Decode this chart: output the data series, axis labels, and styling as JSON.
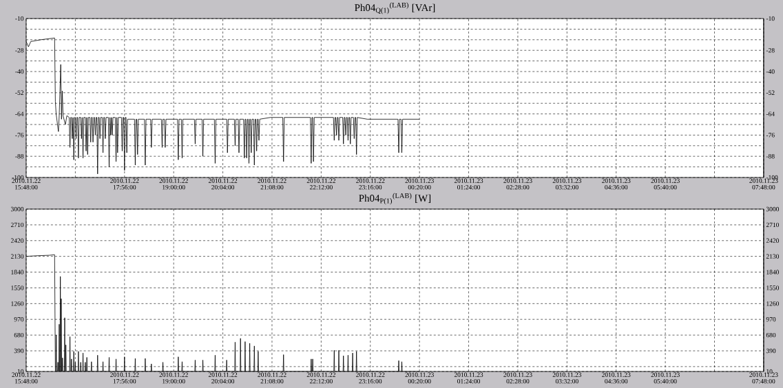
{
  "chart_data": [
    {
      "type": "line",
      "title": "Ph04$_{Q(1)}$$^{(LAB)}$ [VAr]",
      "grid": true,
      "xlim": [
        "2010-11-22T15:48",
        "2010-11-23T07:48"
      ],
      "ylim": [
        -100,
        -10
      ],
      "y2lim": [
        -100,
        -10
      ],
      "xticks": [
        {
          "value": "2010-11-22T15:48",
          "label": "2010.11.22 15:48:00"
        },
        {
          "value": "2010-11-22T16:52",
          "label": null
        },
        {
          "value": "2010-11-22T17:56",
          "label": "2010.11.22 17:56:00"
        },
        {
          "value": "2010-11-22T19:00",
          "label": "2010.11.22 19:00:00"
        },
        {
          "value": "2010-11-22T20:04",
          "label": "2010.11.22 20:04:00"
        },
        {
          "value": "2010-11-22T21:08",
          "label": "2010.11.22 21:08:00"
        },
        {
          "value": "2010-11-22T22:12",
          "label": "2010.11.22 22:12:00"
        },
        {
          "value": "2010-11-22T23:16",
          "label": "2010.11.22 23:16:00"
        },
        {
          "value": "2010-11-23T00:20",
          "label": "2010.11.23 00:20:00"
        },
        {
          "value": "2010-11-23T01:24",
          "label": "2010.11.23 01:24:00"
        },
        {
          "value": "2010-11-23T02:28",
          "label": "2010.11.23 02:28:00"
        },
        {
          "value": "2010-11-23T03:32",
          "label": "2010.11.23 03:32:00"
        },
        {
          "value": "2010-11-23T04:36",
          "label": "2010.11.23 04:36:00"
        },
        {
          "value": "2010-11-23T05:40",
          "label": "2010.11.23 05:40:00"
        },
        {
          "value": "2010-11-23T06:44",
          "label": null
        },
        {
          "value": "2010-11-23T07:48",
          "label": "2010.11.23 07:48:00"
        }
      ],
      "yticks": [
        -100,
        {
          "value": -94,
          "label": null
        },
        -88,
        {
          "value": -82,
          "label": null
        },
        -76,
        {
          "value": -70,
          "label": null
        },
        -64,
        {
          "value": -58,
          "label": null
        },
        -52,
        {
          "value": -46,
          "label": null
        },
        -40,
        {
          "value": -34,
          "label": null
        },
        -28,
        {
          "value": -22,
          "label": null
        },
        {
          "value": -16,
          "label": null
        },
        -10
      ],
      "y2ticks": [
        -100,
        -88,
        -76,
        -64,
        -52,
        -40,
        -28,
        -10
      ],
      "series": [
        {
          "color": "#000000",
          "x": [
            "2010-11-22T15:48",
            "2010-11-22T15:51",
            "2010-11-22T15:54",
            "2010-11-22T16:07",
            "2010-11-22T16:25",
            "2010-11-22T16:26",
            "2010-11-22T16:27",
            "2010-11-22T16:30",
            "2010-11-22T16:31",
            "2010-11-22T16:33",
            "2010-11-22T16:34",
            "2010-11-22T16:35",
            "2010-11-22T16:36",
            "2010-11-22T16:39",
            "2010-11-22T16:41",
            "2010-11-22T16:44",
            "2010-11-22T16:45",
            "2010-11-22T16:46",
            "2010-11-22T16:47",
            "2010-11-22T16:48",
            "2010-11-22T16:49",
            "2010-11-22T16:49",
            "2010-11-22T16:50",
            "2010-11-22T16:51",
            "2010-11-22T16:52",
            "2010-11-22T16:53",
            "2010-11-22T16:54",
            "2010-11-22T16:55",
            "2010-11-22T16:56",
            "2010-11-22T16:57",
            "2010-11-22T16:59",
            "2010-11-22T17:00",
            "2010-11-22T17:01",
            "2010-11-22T17:01",
            "2010-11-22T17:02",
            "2010-11-22T17:03",
            "2010-11-22T17:05",
            "2010-11-22T17:06",
            "2010-11-22T17:07",
            "2010-11-22T17:07",
            "2010-11-22T17:08",
            "2010-11-22T17:09",
            "2010-11-22T17:11",
            "2010-11-22T17:12",
            "2010-11-22T17:13",
            "2010-11-22T17:14",
            "2010-11-22T17:15",
            "2010-11-22T17:16",
            "2010-11-22T17:17",
            "2010-11-22T17:18",
            "2010-11-22T17:19",
            "2010-11-22T17:20",
            "2010-11-22T17:21",
            "2010-11-22T17:22",
            "2010-11-22T17:23",
            "2010-11-22T17:24",
            "2010-11-22T17:25",
            "2010-11-22T17:27",
            "2010-11-22T17:28",
            "2010-11-22T17:29",
            "2010-11-22T17:30",
            "2010-11-22T17:31",
            "2010-11-22T17:32",
            "2010-11-22T17:35",
            "2010-11-22T17:36",
            "2010-11-22T17:37",
            "2010-11-22T17:37",
            "2010-11-22T17:38",
            "2010-11-22T17:39",
            "2010-11-22T17:39",
            "2010-11-22T17:40",
            "2010-11-22T17:41",
            "2010-11-22T17:44",
            "2010-11-22T17:45",
            "2010-11-22T17:46",
            "2010-11-22T17:46",
            "2010-11-22T17:47",
            "2010-11-22T17:48",
            "2010-11-22T17:52",
            "2010-11-22T17:53",
            "2010-11-22T17:54",
            "2010-11-22T17:55",
            "2010-11-22T17:56",
            "2010-11-22T17:57",
            "2010-11-22T17:58",
            "2010-11-22T17:59",
            "2010-11-22T18:00",
            "2010-11-22T18:09",
            "2010-11-22T18:10",
            "2010-11-22T18:11",
            "2010-11-22T18:12",
            "2010-11-22T18:13",
            "2010-11-22T18:14",
            "2010-11-22T18:22",
            "2010-11-22T18:23",
            "2010-11-22T18:24",
            "2010-11-22T18:30",
            "2010-11-22T18:31",
            "2010-11-22T18:32",
            "2010-11-22T18:44",
            "2010-11-22T18:45",
            "2010-11-22T18:46",
            "2010-11-22T18:48",
            "2010-11-22T18:49",
            "2010-11-22T18:50",
            "2010-11-22T19:05",
            "2010-11-22T19:06",
            "2010-11-22T19:07",
            "2010-11-22T19:10",
            "2010-11-22T19:11",
            "2010-11-22T19:12",
            "2010-11-22T19:27",
            "2010-11-22T19:28",
            "2010-11-22T19:29",
            "2010-11-22T19:37",
            "2010-11-22T19:38",
            "2010-11-22T19:39",
            "2010-11-22T19:53",
            "2010-11-22T19:54",
            "2010-11-22T19:55",
            "2010-11-22T20:09",
            "2010-11-22T20:10",
            "2010-11-22T20:11",
            "2010-11-22T20:19",
            "2010-11-22T20:20",
            "2010-11-22T20:21",
            "2010-11-22T20:24",
            "2010-11-22T20:25",
            "2010-11-22T20:26",
            "2010-11-22T20:31",
            "2010-11-22T20:32",
            "2010-11-22T20:33",
            "2010-11-22T20:34",
            "2010-11-22T20:35",
            "2010-11-22T20:36",
            "2010-11-22T20:37",
            "2010-11-22T20:38",
            "2010-11-22T20:39",
            "2010-11-22T20:40",
            "2010-11-22T20:41",
            "2010-11-22T20:42",
            "2010-11-22T20:44",
            "2010-11-22T20:45",
            "2010-11-22T20:46",
            "2010-11-22T20:47",
            "2010-11-22T20:48",
            "2010-11-22T20:49",
            "2010-11-22T20:50",
            "2010-11-22T20:51",
            "2010-11-22T20:52",
            "2010-11-22T21:06",
            "2010-11-22T21:22",
            "2010-11-22T21:23",
            "2010-11-22T21:24",
            "2010-11-22T21:58",
            "2010-11-22T21:59",
            "2010-11-22T22:00",
            "2010-11-22T22:01",
            "2010-11-22T22:02",
            "2010-11-22T22:03",
            "2010-11-22T22:28",
            "2010-11-22T22:29",
            "2010-11-22T22:30",
            "2010-11-22T22:31",
            "2010-11-22T22:32",
            "2010-11-22T22:33",
            "2010-11-22T22:34",
            "2010-11-22T22:35",
            "2010-11-22T22:36",
            "2010-11-22T22:40",
            "2010-11-22T22:41",
            "2010-11-22T22:42",
            "2010-11-22T22:43",
            "2010-11-22T22:44",
            "2010-11-22T22:45",
            "2010-11-22T22:46",
            "2010-11-22T22:47",
            "2010-11-22T22:48",
            "2010-11-22T22:49",
            "2010-11-22T22:50",
            "2010-11-22T22:51",
            "2010-11-22T22:54",
            "2010-11-22T22:55",
            "2010-11-22T22:56",
            "2010-11-22T22:57",
            "2010-11-22T22:58",
            "2010-11-22T22:59",
            "2010-11-22T23:12",
            "2010-11-22T23:52",
            "2010-11-22T23:53",
            "2010-11-22T23:54",
            "2010-11-22T23:56",
            "2010-11-22T23:57",
            "2010-11-22T23:58",
            "2010-11-23T00:20"
          ],
          "values": [
            -23,
            -26,
            -23,
            -22,
            -21,
            -57,
            -64,
            -74,
            -65,
            -36,
            -67,
            -51,
            -65,
            -70,
            -65,
            -66,
            -83,
            -66,
            -66,
            -78,
            -66,
            -66,
            -90,
            -66,
            -66,
            -78,
            -66,
            -66,
            -89,
            -66,
            -66,
            -78,
            -66,
            -66,
            -89,
            -66,
            -66,
            -85,
            -66,
            -66,
            -87,
            -66,
            -66,
            -80,
            -66,
            -66,
            -80,
            -66,
            -66,
            -76,
            -66,
            -66,
            -98,
            -66,
            -66,
            -78,
            -66,
            -66,
            -86,
            -66,
            -66,
            -78,
            -66,
            -66,
            -94,
            -66,
            -66,
            -76,
            -66,
            -66,
            -76,
            -66,
            -66,
            -91,
            -66,
            -66,
            -86,
            -66,
            -66,
            -85,
            -66,
            -66,
            -96,
            -66,
            -66,
            -86,
            -67,
            -67,
            -93,
            -67,
            -67,
            -87,
            -67,
            -67,
            -93,
            -67,
            -67,
            -83,
            -67,
            -67,
            -83,
            -67,
            -67,
            -83,
            -67,
            -67,
            -90,
            -67,
            -67,
            -89,
            -67,
            -67,
            -81,
            -67,
            -67,
            -88,
            -67,
            -67,
            -92,
            -67,
            -67,
            -86,
            -67,
            -67,
            -82,
            -67,
            -67,
            -86,
            -67,
            -67,
            -89,
            -67,
            -67,
            -89,
            -67,
            -67,
            -92,
            -67,
            -67,
            -86,
            -67,
            -67,
            -93,
            -67,
            -67,
            -85,
            -67,
            -67,
            -79,
            -67,
            -66,
            -66,
            -91,
            -66,
            -66,
            -92,
            -66,
            -66,
            -91,
            -66,
            -66,
            -79,
            -66,
            -66,
            -76,
            -66,
            -66,
            -79,
            -66,
            -66,
            -81,
            -66,
            -66,
            -76,
            -66,
            -66,
            -79,
            -66,
            -66,
            -81,
            -66,
            -66,
            -78,
            -66,
            -66,
            -87,
            -66,
            -67,
            -67,
            -86,
            -67,
            -67,
            -86,
            -67,
            -67
          ]
        }
      ]
    },
    {
      "type": "line",
      "title": "Ph04$_{P(1)}$$^{(LAB)}$ [W]",
      "grid": true,
      "xlim": [
        "2010-11-22T15:48",
        "2010-11-23T07:48"
      ],
      "ylim": [
        10,
        3000
      ],
      "y2lim": [
        10,
        3000
      ],
      "xticks": [
        {
          "value": "2010-11-22T15:48",
          "label": "2010.11.22 15:48:00"
        },
        {
          "value": "2010-11-22T16:52",
          "label": null
        },
        {
          "value": "2010-11-22T17:56",
          "label": "2010.11.22 17:56:00"
        },
        {
          "value": "2010-11-22T19:00",
          "label": "2010.11.22 19:00:00"
        },
        {
          "value": "2010-11-22T20:04",
          "label": "2010.11.22 20:04:00"
        },
        {
          "value": "2010-11-22T21:08",
          "label": "2010.11.22 21:08:00"
        },
        {
          "value": "2010-11-22T22:12",
          "label": "2010.11.22 22:12:00"
        },
        {
          "value": "2010-11-22T23:16",
          "label": "2010.11.22 23:16:00"
        },
        {
          "value": "2010-11-23T00:20",
          "label": "2010.11.23 00:20:00"
        },
        {
          "value": "2010-11-23T01:24",
          "label": "2010.11.23 01:24:00"
        },
        {
          "value": "2010-11-23T02:28",
          "label": "2010.11.23 02:28:00"
        },
        {
          "value": "2010-11-23T03:32",
          "label": "2010.11.23 03:32:00"
        },
        {
          "value": "2010-11-23T04:36",
          "label": "2010.11.23 04:36:00"
        },
        {
          "value": "2010-11-23T05:40",
          "label": "2010.11.23 05:40:00"
        },
        {
          "value": "2010-11-23T06:44",
          "label": null
        },
        {
          "value": "2010-11-23T07:48",
          "label": "2010.11.23 07:48:00"
        }
      ],
      "yticks": [
        10,
        {
          "value": 100,
          "label": null
        },
        390,
        680,
        970,
        1260,
        1550,
        1840,
        2130,
        2420,
        2710,
        3000
      ],
      "y2ticks": [
        10,
        390,
        680,
        970,
        1260,
        1550,
        1840,
        2130,
        2420,
        2710,
        3000
      ],
      "series": [
        {
          "color": "#000000",
          "x": [
            "2010-11-22T15:48",
            "2010-11-22T16:00",
            "2010-11-22T16:18",
            "2010-11-22T16:25",
            "2010-11-22T16:26",
            "2010-11-22T16:26:40",
            "2010-11-22T16:27:10",
            "2010-11-22T16:27:40",
            "2010-11-22T16:28:50",
            "2010-11-22T16:29:20",
            "2010-11-22T16:29:50",
            "2010-11-22T16:30:30",
            "2010-11-22T16:31:00",
            "2010-11-22T16:31:30",
            "2010-11-22T16:32:00",
            "2010-11-22T16:32:30",
            "2010-11-22T16:33:00",
            "2010-11-22T16:33:10",
            "2010-11-22T16:33:40",
            "2010-11-22T16:34:10",
            "2010-11-22T16:34:50",
            "2010-11-22T16:35:20",
            "2010-11-22T16:35:50",
            "2010-11-22T16:37:40",
            "2010-11-22T16:38:10",
            "2010-11-22T16:38:40",
            "2010-11-22T16:39:10",
            "2010-11-22T16:39:40",
            "2010-11-22T16:40:10",
            "2010-11-22T16:44:30",
            "2010-11-22T16:45:00",
            "2010-11-22T16:45:30",
            "2010-11-22T16:46:30",
            "2010-11-22T16:47:00",
            "2010-11-22T16:47:30",
            "2010-11-22T16:49:30",
            "2010-11-22T16:50:00",
            "2010-11-22T16:50:30",
            "2010-11-22T16:51:30",
            "2010-11-22T16:52:00",
            "2010-11-22T16:52:30",
            "2010-11-22T16:55:30",
            "2010-11-22T16:56:00",
            "2010-11-22T16:56:30",
            "2010-11-22T16:58:30",
            "2010-11-22T16:59:00",
            "2010-11-22T16:59:30",
            "2010-11-22T17:01:30",
            "2010-11-22T17:02:00",
            "2010-11-22T17:02:30",
            "2010-11-22T17:04:30",
            "2010-11-22T17:05:00",
            "2010-11-22T17:05:30",
            "2010-11-22T17:06:30",
            "2010-11-22T17:07:00",
            "2010-11-22T17:07:30",
            "2010-11-22T17:12:30",
            "2010-11-22T17:13:00",
            "2010-11-22T17:13:30",
            "2010-11-22T17:20:30",
            "2010-11-22T17:21:00",
            "2010-11-22T17:21:30",
            "2010-11-22T17:27:30",
            "2010-11-22T17:28:00",
            "2010-11-22T17:28:30",
            "2010-11-22T17:35:30",
            "2010-11-22T17:36:00",
            "2010-11-22T17:36:30",
            "2010-11-22T17:44:30",
            "2010-11-22T17:45:00",
            "2010-11-22T17:45:30",
            "2010-11-22T17:55:30",
            "2010-11-22T17:56:00",
            "2010-11-22T17:56:30",
            "2010-11-22T18:09:30",
            "2010-11-22T18:10:00",
            "2010-11-22T18:10:30",
            "2010-11-22T18:22:30",
            "2010-11-22T18:23:00",
            "2010-11-22T18:23:30",
            "2010-11-22T18:30:30",
            "2010-11-22T18:31:00",
            "2010-11-22T18:31:30",
            "2010-11-22T18:45:30",
            "2010-11-22T18:46:00",
            "2010-11-22T18:46:30",
            "2010-11-22T19:05:30",
            "2010-11-22T19:06:00",
            "2010-11-22T19:06:30",
            "2010-11-22T19:10:30",
            "2010-11-22T19:11:00",
            "2010-11-22T19:11:30",
            "2010-11-22T19:27:30",
            "2010-11-22T19:28:00",
            "2010-11-22T19:28:30",
            "2010-11-22T19:37:30",
            "2010-11-22T19:38:00",
            "2010-11-22T19:38:30",
            "2010-11-22T19:53:30",
            "2010-11-22T19:54:00",
            "2010-11-22T19:54:30",
            "2010-11-22T20:08:30",
            "2010-11-22T20:09:00",
            "2010-11-22T20:09:30",
            "2010-11-22T20:19:30",
            "2010-11-22T20:20:00",
            "2010-11-22T20:20:30",
            "2010-11-22T20:26:30",
            "2010-11-22T20:27:00",
            "2010-11-22T20:27:30",
            "2010-11-22T20:32:30",
            "2010-11-22T20:33:00",
            "2010-11-22T20:33:30",
            "2010-11-22T20:38:30",
            "2010-11-22T20:39:00",
            "2010-11-22T20:39:30",
            "2010-11-22T20:44:30",
            "2010-11-22T20:45:00",
            "2010-11-22T20:45:30",
            "2010-11-22T20:49:30",
            "2010-11-22T20:50:00",
            "2010-11-22T20:50:30",
            "2010-11-22T21:22:30",
            "2010-11-22T21:23:00",
            "2010-11-22T21:23:30",
            "2010-11-22T21:58:30",
            "2010-11-22T21:59:00",
            "2010-11-22T21:59:30",
            "2010-11-22T22:00:30",
            "2010-11-22T22:01:00",
            "2010-11-22T22:01:30",
            "2010-11-22T22:28:30",
            "2010-11-22T22:29:00",
            "2010-11-22T22:29:30",
            "2010-11-22T22:34:30",
            "2010-11-22T22:35:00",
            "2010-11-22T22:35:30",
            "2010-11-22T22:40:30",
            "2010-11-22T22:41:00",
            "2010-11-22T22:41:30",
            "2010-11-22T22:46:30",
            "2010-11-22T22:47:00",
            "2010-11-22T22:47:30",
            "2010-11-22T22:52:30",
            "2010-11-22T22:53:00",
            "2010-11-22T22:53:30",
            "2010-11-22T22:57:30",
            "2010-11-22T22:58:00",
            "2010-11-22T22:58:30",
            "2010-11-22T23:52:30",
            "2010-11-22T23:53:00",
            "2010-11-22T23:53:30",
            "2010-11-22T23:56:30",
            "2010-11-22T23:57:00",
            "2010-11-22T23:57:30",
            "2010-11-23T00:20"
          ],
          "values": [
            2130,
            2140,
            2150,
            2160,
            10,
            10,
            680,
            10,
            10,
            180,
            10,
            10,
            880,
            10,
            10,
            1760,
            10,
            10,
            1350,
            10,
            10,
            260,
            10,
            10,
            1000,
            10,
            10,
            500,
            10,
            10,
            650,
            10,
            10,
            240,
            10,
            10,
            380,
            10,
            10,
            180,
            10,
            10,
            380,
            10,
            10,
            180,
            10,
            10,
            350,
            10,
            10,
            180,
            10,
            10,
            270,
            10,
            10,
            190,
            10,
            10,
            310,
            10,
            10,
            190,
            10,
            10,
            270,
            10,
            10,
            240,
            10,
            10,
            280,
            10,
            10,
            250,
            10,
            10,
            250,
            10,
            10,
            150,
            10,
            10,
            180,
            10,
            10,
            280,
            10,
            10,
            190,
            10,
            10,
            220,
            10,
            10,
            220,
            10,
            10,
            310,
            10,
            10,
            220,
            10,
            10,
            550,
            10,
            10,
            620,
            10,
            10,
            560,
            10,
            10,
            530,
            10,
            10,
            480,
            10,
            10,
            380,
            10,
            10,
            320,
            10,
            10,
            240,
            10,
            10,
            240,
            10,
            10,
            400,
            10,
            10,
            400,
            10,
            10,
            300,
            10,
            10,
            310,
            10,
            10,
            350,
            10,
            10,
            380,
            10,
            10,
            210,
            10,
            10,
            190,
            10,
            10
          ]
        }
      ]
    }
  ]
}
